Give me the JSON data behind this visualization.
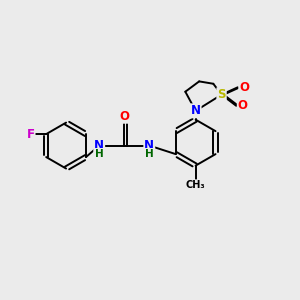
{
  "bg_color": "#ebebeb",
  "atom_colors": {
    "N": "#0000ff",
    "O": "#ff0000",
    "F": "#cc00cc",
    "S": "#b8b800",
    "C": "#000000",
    "H": "#006600"
  },
  "bond_color": "#000000",
  "bond_width": 1.4,
  "font_size_atom": 8.5,
  "font_size_h": 7.5
}
